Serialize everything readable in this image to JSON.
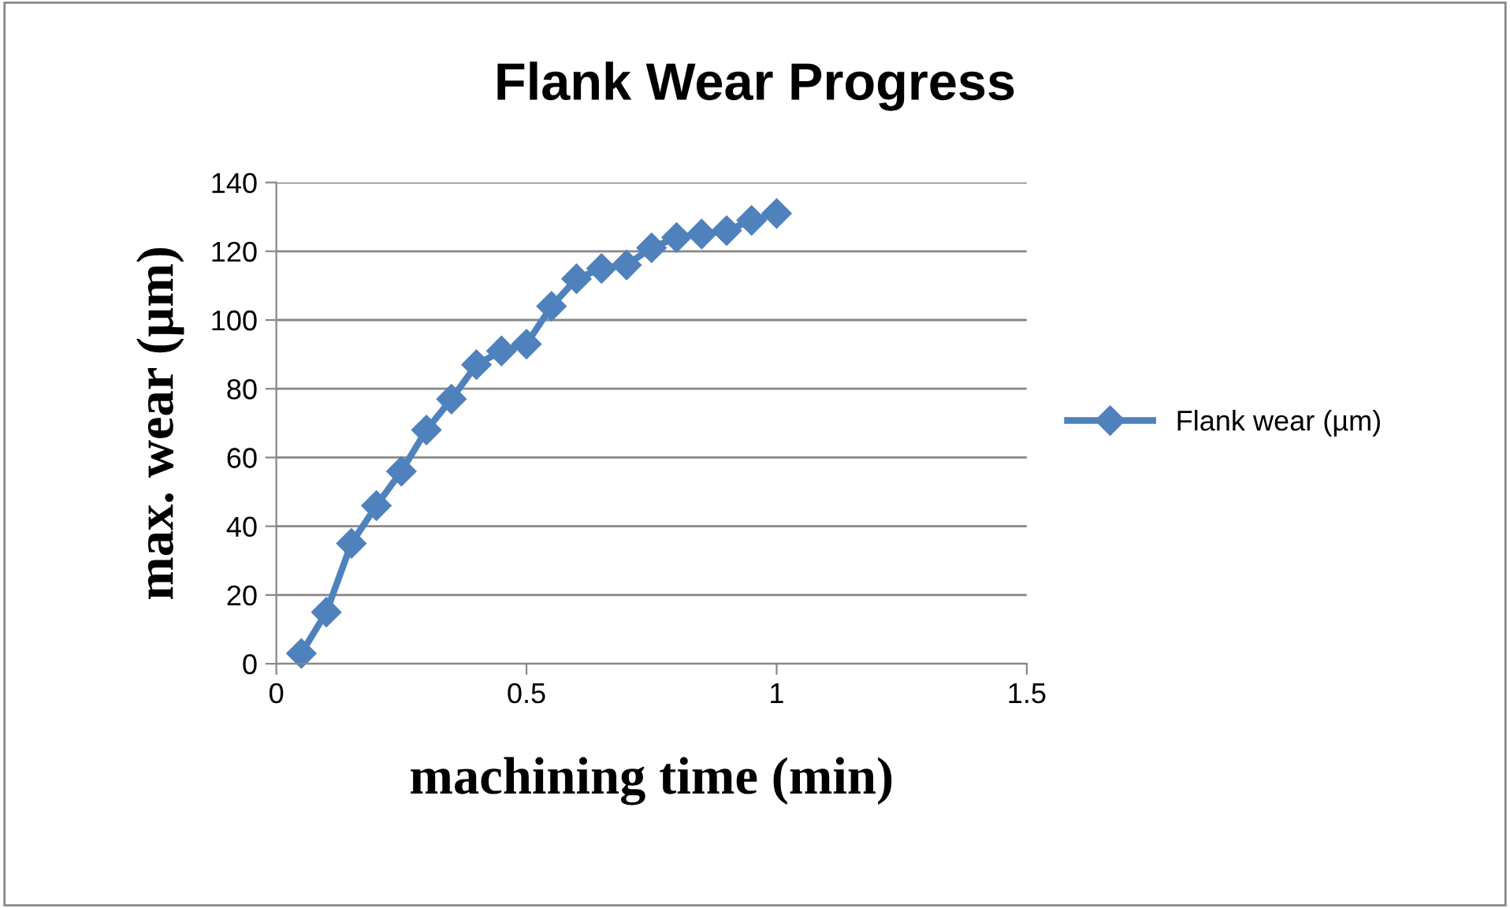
{
  "chart_data": {
    "type": "line",
    "title": "Flank Wear Progress",
    "xlabel": "machining time (min)",
    "ylabel": "max. wear (µm)",
    "x": [
      0.05,
      0.1,
      0.15,
      0.2,
      0.25,
      0.3,
      0.35,
      0.4,
      0.45,
      0.5,
      0.55,
      0.6,
      0.65,
      0.7,
      0.75,
      0.8,
      0.85,
      0.9,
      0.95,
      1.0
    ],
    "series": [
      {
        "name": "Flank wear (µm)",
        "color": "#4f81bd",
        "values": [
          3,
          15,
          35,
          46,
          56,
          68,
          77,
          87,
          91,
          93,
          104,
          112,
          115,
          116,
          121,
          124,
          125,
          126,
          129,
          131
        ]
      }
    ],
    "xlim": [
      0,
      1.5
    ],
    "xticks": [
      0,
      0.5,
      1,
      1.5
    ],
    "ylim": [
      0,
      140
    ],
    "yticks": [
      0,
      20,
      40,
      60,
      80,
      100,
      120,
      140
    ],
    "grid": "y",
    "legend": "right",
    "marker": "diamond",
    "line_style": "solid"
  }
}
